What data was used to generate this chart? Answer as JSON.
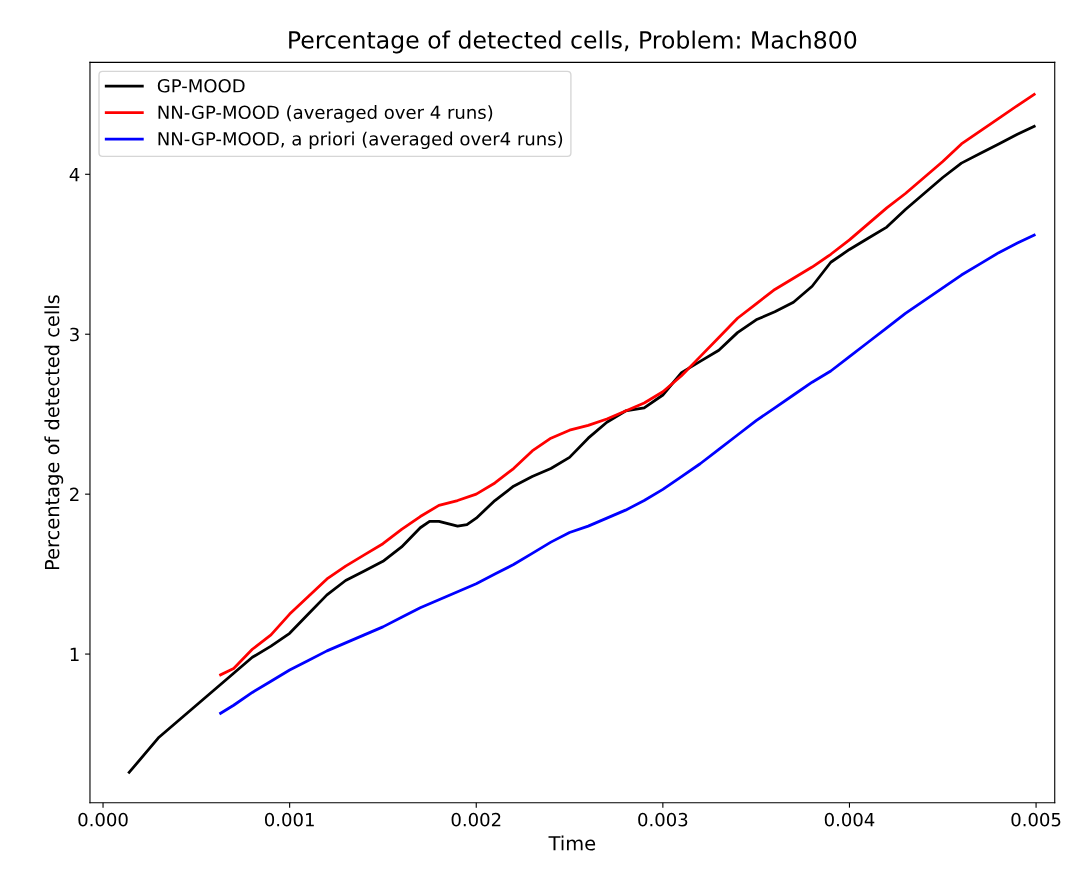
{
  "chart_data": {
    "type": "line",
    "title": "Percentage of detected cells, Problem: Mach800",
    "xlabel": "Time",
    "ylabel": "Percentage of detected cells",
    "xlim": [
      -7e-05,
      0.0051
    ],
    "ylim": [
      0.07,
      4.7
    ],
    "xticks": [
      {
        "value": 0,
        "label": "0.000"
      },
      {
        "value": 0.001,
        "label": "0.001"
      },
      {
        "value": 0.002,
        "label": "0.002"
      },
      {
        "value": 0.003,
        "label": "0.003"
      },
      {
        "value": 0.004,
        "label": "0.004"
      },
      {
        "value": 0.005,
        "label": "0.005"
      }
    ],
    "yticks": [
      1,
      2,
      3,
      4
    ],
    "grid": false,
    "legend": "top left",
    "marker": "none",
    "line_style": "solid",
    "series": [
      {
        "name": "GP-MOOD",
        "color": "#000000",
        "x": [
          0.00014,
          0.0003,
          0.0005,
          0.0007,
          0.0008,
          0.0009,
          0.001,
          0.0011,
          0.0012,
          0.0013,
          0.0014,
          0.0015,
          0.0016,
          0.0017,
          0.00175,
          0.0018,
          0.0019,
          0.00195,
          0.002,
          0.0021,
          0.0022,
          0.0023,
          0.0024,
          0.0025,
          0.0026,
          0.0027,
          0.0028,
          0.0029,
          0.003,
          0.0031,
          0.0032,
          0.0033,
          0.0034,
          0.0035,
          0.0036,
          0.0037,
          0.0038,
          0.0039,
          0.004,
          0.0041,
          0.0042,
          0.0043,
          0.0044,
          0.0045,
          0.0046,
          0.0047,
          0.0048,
          0.0049,
          0.00499
        ],
        "values": [
          0.26,
          0.48,
          0.68,
          0.88,
          0.98,
          1.05,
          1.13,
          1.25,
          1.37,
          1.46,
          1.52,
          1.58,
          1.67,
          1.79,
          1.83,
          1.83,
          1.8,
          1.81,
          1.85,
          1.96,
          2.05,
          2.11,
          2.16,
          2.23,
          2.35,
          2.45,
          2.52,
          2.54,
          2.62,
          2.76,
          2.83,
          2.9,
          3.01,
          3.09,
          3.14,
          3.2,
          3.3,
          3.45,
          3.53,
          3.6,
          3.67,
          3.78,
          3.88,
          3.98,
          4.07,
          4.13,
          4.19,
          4.25,
          4.3
        ]
      },
      {
        "name": "NN-GP-MOOD (averaged over 4 runs)",
        "color": "#ff0000",
        "x": [
          0.00063,
          0.0007,
          0.0008,
          0.0009,
          0.001,
          0.0011,
          0.0012,
          0.0013,
          0.0014,
          0.0015,
          0.0016,
          0.0017,
          0.0018,
          0.0019,
          0.002,
          0.0021,
          0.0022,
          0.0023,
          0.0024,
          0.0025,
          0.0026,
          0.0027,
          0.0028,
          0.0029,
          0.003,
          0.0031,
          0.0032,
          0.0033,
          0.0034,
          0.0035,
          0.0036,
          0.0037,
          0.0038,
          0.0039,
          0.004,
          0.0041,
          0.0042,
          0.0043,
          0.0044,
          0.0045,
          0.0046,
          0.0047,
          0.0048,
          0.0049,
          0.00499
        ],
        "values": [
          0.87,
          0.91,
          1.03,
          1.12,
          1.25,
          1.36,
          1.47,
          1.55,
          1.62,
          1.69,
          1.78,
          1.86,
          1.93,
          1.96,
          2.0,
          2.07,
          2.16,
          2.27,
          2.35,
          2.4,
          2.43,
          2.47,
          2.52,
          2.57,
          2.64,
          2.74,
          2.86,
          2.98,
          3.1,
          3.19,
          3.28,
          3.35,
          3.42,
          3.5,
          3.59,
          3.69,
          3.79,
          3.88,
          3.98,
          4.08,
          4.19,
          4.27,
          4.35,
          4.43,
          4.5
        ]
      },
      {
        "name": "NN-GP-MOOD, a priori (averaged over4 runs)",
        "color": "#0000ff",
        "x": [
          0.00063,
          0.0007,
          0.0008,
          0.0009,
          0.001,
          0.0011,
          0.0012,
          0.0013,
          0.0014,
          0.0015,
          0.0016,
          0.0017,
          0.0018,
          0.0019,
          0.002,
          0.0021,
          0.0022,
          0.0023,
          0.0024,
          0.0025,
          0.0026,
          0.0027,
          0.0028,
          0.0029,
          0.003,
          0.0031,
          0.0032,
          0.0033,
          0.0034,
          0.0035,
          0.0036,
          0.0037,
          0.0038,
          0.0039,
          0.004,
          0.0041,
          0.0042,
          0.0043,
          0.0044,
          0.0045,
          0.0046,
          0.0047,
          0.0048,
          0.0049,
          0.00499
        ],
        "values": [
          0.63,
          0.68,
          0.76,
          0.83,
          0.9,
          0.96,
          1.02,
          1.07,
          1.12,
          1.17,
          1.23,
          1.29,
          1.34,
          1.39,
          1.44,
          1.5,
          1.56,
          1.63,
          1.7,
          1.76,
          1.8,
          1.85,
          1.9,
          1.96,
          2.03,
          2.11,
          2.19,
          2.28,
          2.37,
          2.46,
          2.54,
          2.62,
          2.7,
          2.77,
          2.86,
          2.95,
          3.04,
          3.13,
          3.21,
          3.29,
          3.37,
          3.44,
          3.51,
          3.57,
          3.62
        ]
      }
    ]
  }
}
